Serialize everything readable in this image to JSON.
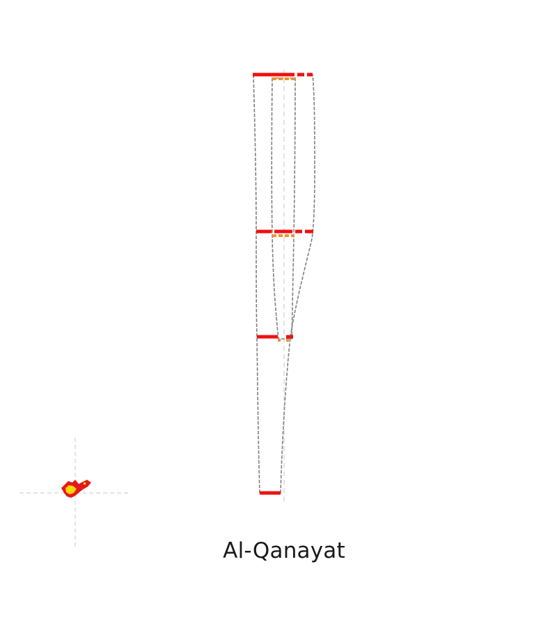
{
  "title": "Al-Qanayat",
  "colors": {
    "background": "#ffffff",
    "outline": "#808080",
    "axis": "#d3d3d3",
    "primary_mark": "#ee1111",
    "secondary_mark": "#f0912e",
    "map_highlight": "#ffd700",
    "map_shape": "#e31a1c"
  }
}
